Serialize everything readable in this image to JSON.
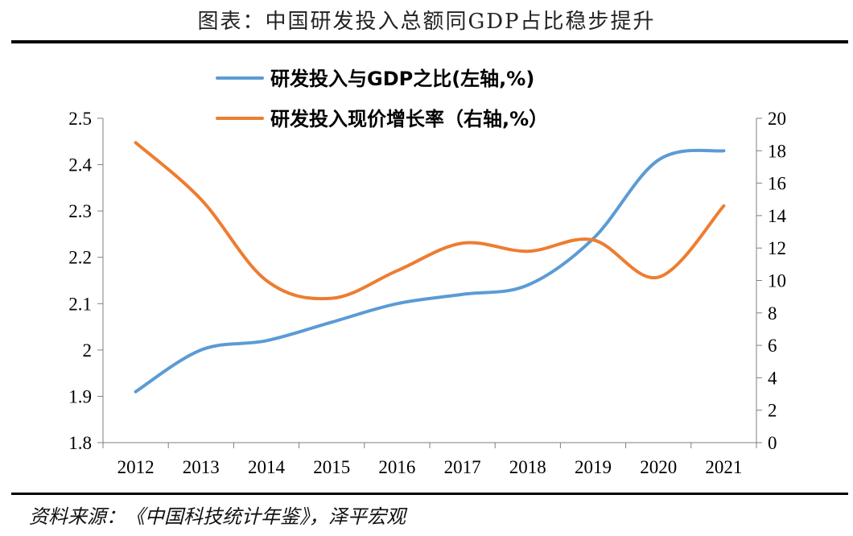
{
  "header": {
    "title": "图表：中国研发投入总额同GDP占比稳步提升"
  },
  "footer": {
    "source": "资料来源：《中国科技统计年鉴》，泽平宏观"
  },
  "chart_data": {
    "type": "line",
    "title": "图表：中国研发投入总额同GDP占比稳步提升",
    "categories": [
      "2012",
      "2013",
      "2014",
      "2015",
      "2016",
      "2017",
      "2018",
      "2019",
      "2020",
      "2021"
    ],
    "series": [
      {
        "name": "研发投入与GDP之比(左轴,%)",
        "axis": "left",
        "color": "#5B9BD5",
        "values": [
          1.91,
          2.0,
          2.02,
          2.06,
          2.1,
          2.12,
          2.14,
          2.24,
          2.41,
          2.43
        ]
      },
      {
        "name": "研发投入现价增长率（右轴,%）",
        "axis": "right",
        "color": "#ED7D31",
        "values": [
          18.5,
          15.0,
          10.0,
          8.9,
          10.6,
          12.3,
          11.8,
          12.5,
          10.2,
          14.6
        ]
      }
    ],
    "left_axis": {
      "min": 1.8,
      "max": 2.5,
      "ticks": [
        "1.8",
        "1.9",
        "2",
        "2.1",
        "2.2",
        "2.3",
        "2.4",
        "2.5"
      ]
    },
    "right_axis": {
      "min": 0,
      "max": 20,
      "ticks": [
        "0",
        "2",
        "4",
        "6",
        "8",
        "10",
        "12",
        "14",
        "16",
        "18",
        "20"
      ]
    },
    "legend_position": "top",
    "grid": false
  }
}
